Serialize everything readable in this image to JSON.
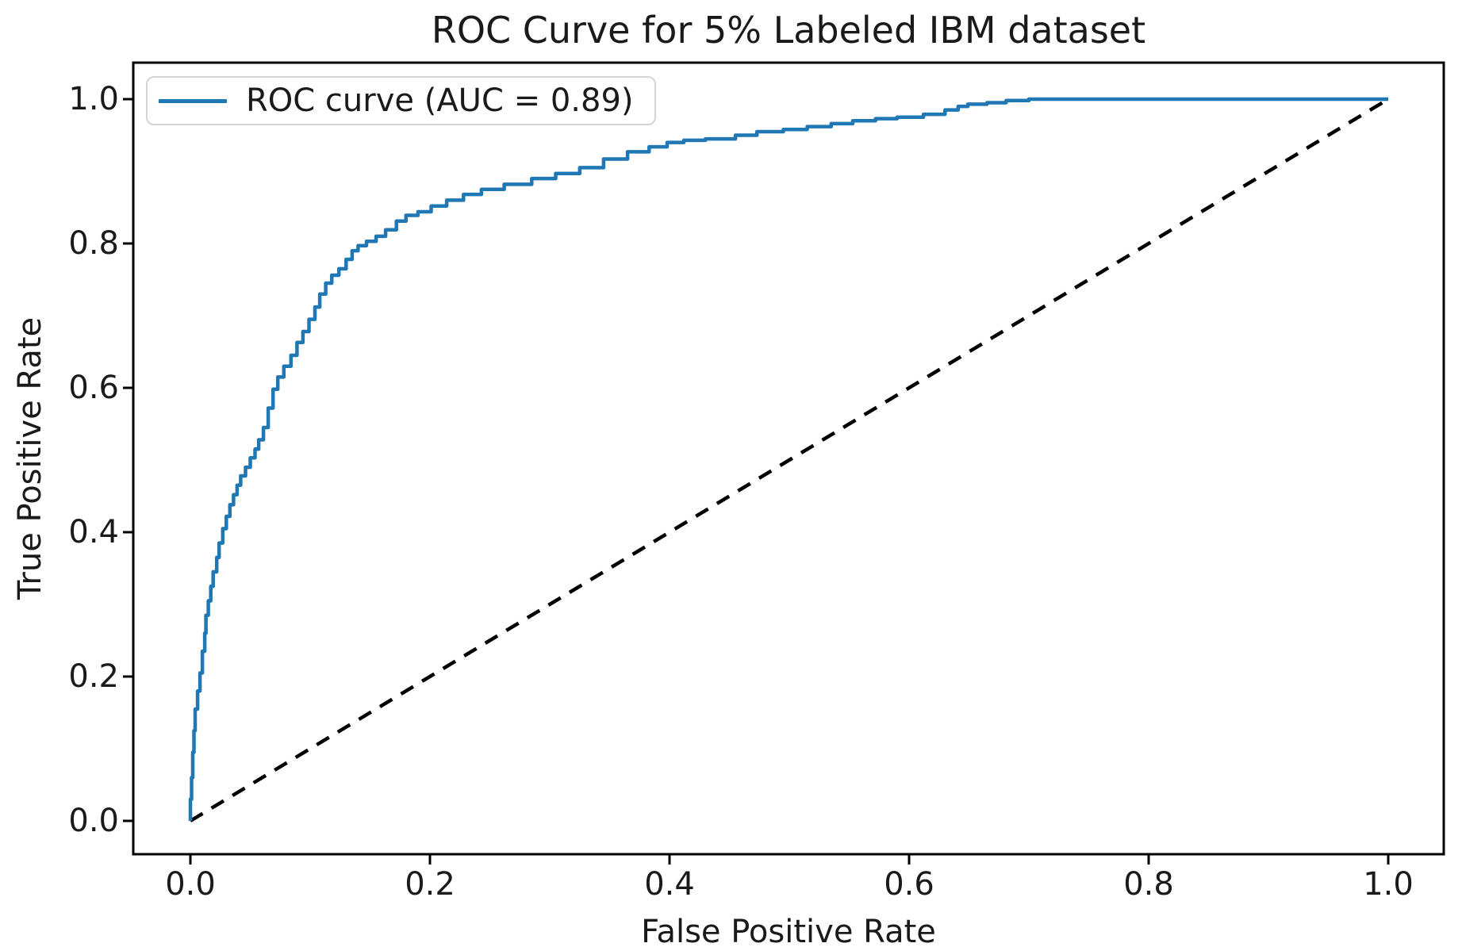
{
  "figure": {
    "title": "ROC Curve for 5% Labeled IBM dataset",
    "xlabel": "False Positive Rate",
    "ylabel": "True Positive Rate",
    "legend": {
      "label": "ROC curve (AUC = 0.89)"
    },
    "x_ticks": [
      "0.0",
      "0.2",
      "0.4",
      "0.6",
      "0.8",
      "1.0"
    ],
    "y_ticks": [
      "0.0",
      "0.2",
      "0.4",
      "0.6",
      "0.8",
      "1.0"
    ],
    "colors": {
      "roc_line": "#1f77b4",
      "diagonal_line": "#000000",
      "frame": "#000000",
      "background": "#ffffff",
      "legend_border": "#d4d4d4",
      "text": "#1a1a1a"
    }
  },
  "chart_data": {
    "type": "line",
    "title": "ROC Curve for 5% Labeled IBM dataset",
    "xlabel": "False Positive Rate",
    "ylabel": "True Positive Rate",
    "xlim": [
      0,
      1
    ],
    "ylim": [
      0,
      1
    ],
    "x_tick_values": [
      0.0,
      0.2,
      0.4,
      0.6,
      0.8,
      1.0
    ],
    "y_tick_values": [
      0.0,
      0.2,
      0.4,
      0.6,
      0.8,
      1.0
    ],
    "grid": false,
    "legend_position": "upper left",
    "auc": 0.89,
    "series": [
      {
        "name": "ROC curve (AUC = 0.89)",
        "color": "#1f77b4",
        "style": "solid",
        "step": true,
        "points": [
          [
            0.0,
            0.0
          ],
          [
            0.001,
            0.03
          ],
          [
            0.002,
            0.06
          ],
          [
            0.003,
            0.095
          ],
          [
            0.004,
            0.125
          ],
          [
            0.006,
            0.155
          ],
          [
            0.008,
            0.18
          ],
          [
            0.01,
            0.205
          ],
          [
            0.012,
            0.235
          ],
          [
            0.013,
            0.26
          ],
          [
            0.015,
            0.285
          ],
          [
            0.017,
            0.305
          ],
          [
            0.019,
            0.325
          ],
          [
            0.022,
            0.345
          ],
          [
            0.024,
            0.365
          ],
          [
            0.027,
            0.385
          ],
          [
            0.03,
            0.405
          ],
          [
            0.033,
            0.422
          ],
          [
            0.036,
            0.438
          ],
          [
            0.039,
            0.452
          ],
          [
            0.042,
            0.465
          ],
          [
            0.046,
            0.478
          ],
          [
            0.05,
            0.49
          ],
          [
            0.054,
            0.503
          ],
          [
            0.057,
            0.515
          ],
          [
            0.061,
            0.528
          ],
          [
            0.065,
            0.545
          ],
          [
            0.069,
            0.572
          ],
          [
            0.073,
            0.598
          ],
          [
            0.078,
            0.615
          ],
          [
            0.084,
            0.63
          ],
          [
            0.089,
            0.645
          ],
          [
            0.094,
            0.663
          ],
          [
            0.099,
            0.678
          ],
          [
            0.104,
            0.695
          ],
          [
            0.108,
            0.712
          ],
          [
            0.113,
            0.73
          ],
          [
            0.118,
            0.745
          ],
          [
            0.124,
            0.756
          ],
          [
            0.13,
            0.765
          ],
          [
            0.135,
            0.778
          ],
          [
            0.14,
            0.79
          ],
          [
            0.147,
            0.797
          ],
          [
            0.155,
            0.803
          ],
          [
            0.163,
            0.81
          ],
          [
            0.172,
            0.819
          ],
          [
            0.18,
            0.831
          ],
          [
            0.19,
            0.839
          ],
          [
            0.201,
            0.844
          ],
          [
            0.214,
            0.852
          ],
          [
            0.228,
            0.86
          ],
          [
            0.243,
            0.868
          ],
          [
            0.262,
            0.875
          ],
          [
            0.285,
            0.882
          ],
          [
            0.305,
            0.89
          ],
          [
            0.325,
            0.897
          ],
          [
            0.345,
            0.905
          ],
          [
            0.365,
            0.917
          ],
          [
            0.383,
            0.927
          ],
          [
            0.398,
            0.934
          ],
          [
            0.412,
            0.94
          ],
          [
            0.43,
            0.943
          ],
          [
            0.455,
            0.945
          ],
          [
            0.473,
            0.95
          ],
          [
            0.495,
            0.955
          ],
          [
            0.515,
            0.958
          ],
          [
            0.535,
            0.962
          ],
          [
            0.553,
            0.966
          ],
          [
            0.572,
            0.97
          ],
          [
            0.59,
            0.973
          ],
          [
            0.612,
            0.975
          ],
          [
            0.63,
            0.979
          ],
          [
            0.641,
            0.985
          ],
          [
            0.649,
            0.99
          ],
          [
            0.665,
            0.993
          ],
          [
            0.681,
            0.995
          ],
          [
            0.7,
            0.998
          ],
          [
            0.72,
            1.0
          ],
          [
            1.0,
            1.0
          ]
        ]
      },
      {
        "name": "chance diagonal",
        "color": "#000000",
        "style": "dashed",
        "step": false,
        "points": [
          [
            0.0,
            0.0
          ],
          [
            1.0,
            1.0
          ]
        ]
      }
    ]
  }
}
